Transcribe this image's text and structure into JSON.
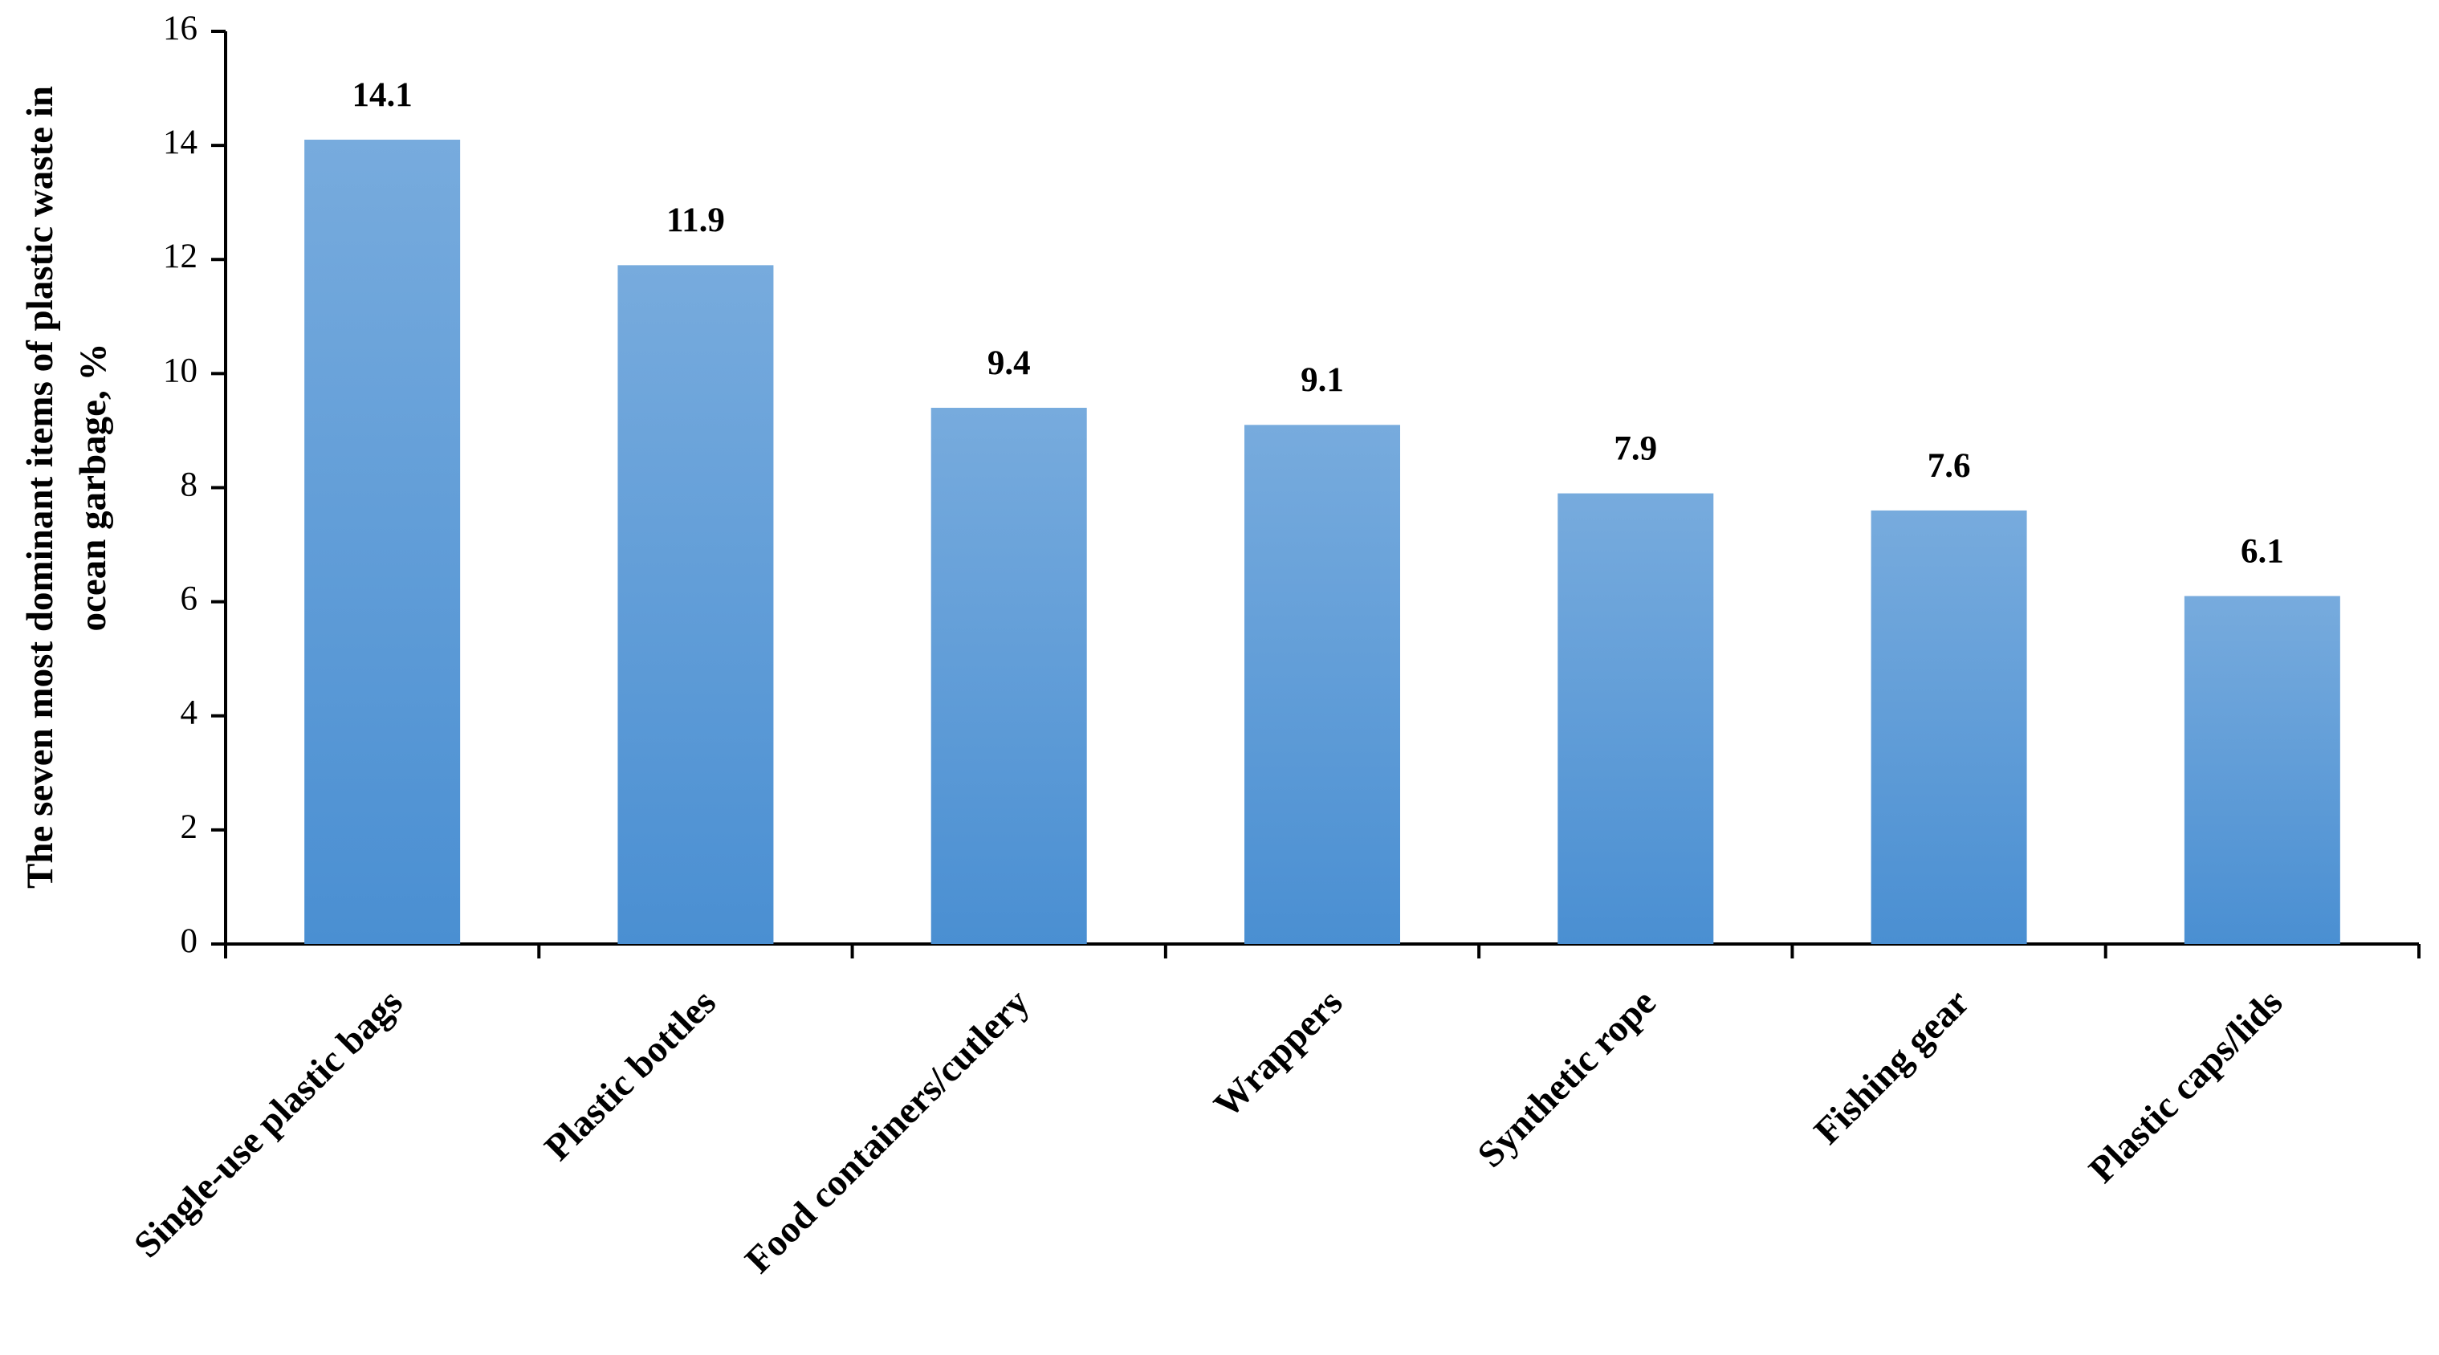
{
  "chart_data": {
    "type": "bar",
    "ylabel": [
      "The seven most dominant items of plastic waste in",
      "ocean garbage, %"
    ],
    "categories": [
      "Single-use plastic bags",
      "Plastic bottles",
      "Food containers/cutlery",
      "Wrappers",
      "Synthetic rope",
      "Fishing gear",
      "Plastic caps/lids"
    ],
    "values": [
      14.1,
      11.9,
      9.4,
      9.1,
      7.9,
      7.6,
      6.1
    ],
    "color": "#4a8fd2",
    "ylim": [
      0,
      16
    ],
    "yticks": [
      0,
      2,
      4,
      6,
      8,
      10,
      12,
      14,
      16
    ],
    "grid": false
  }
}
